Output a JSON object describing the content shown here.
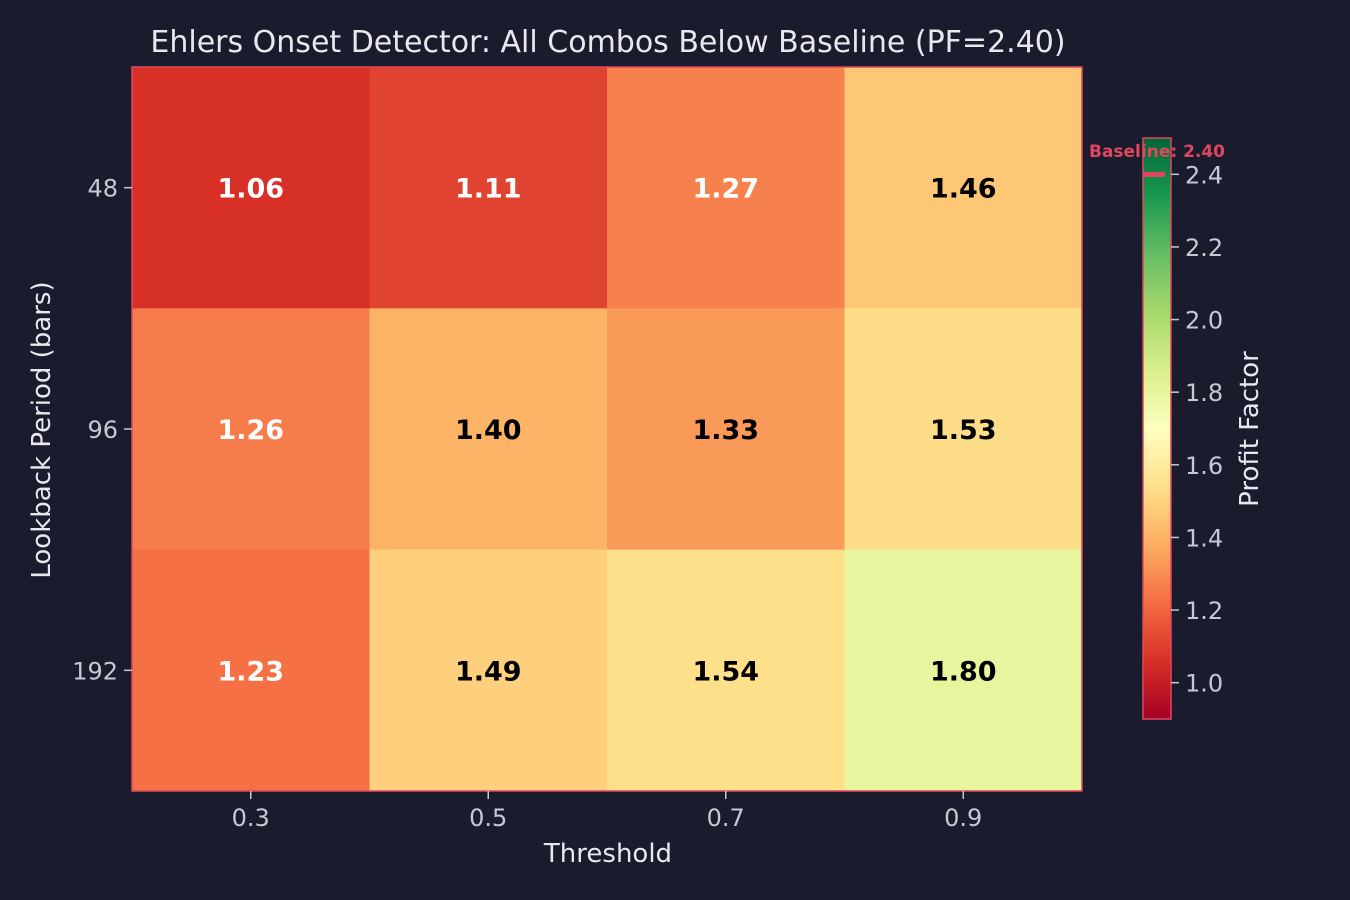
{
  "chart_data": {
    "type": "heatmap",
    "title": "Ehlers Onset Detector: All Combos Below Baseline (PF=2.40)",
    "xlabel": "Threshold",
    "ylabel": "Lookback Period (bars)",
    "x_categories": [
      "0.3",
      "0.5",
      "0.7",
      "0.9"
    ],
    "y_categories": [
      "48",
      "96",
      "192"
    ],
    "values": [
      [
        1.06,
        1.11,
        1.27,
        1.46
      ],
      [
        1.26,
        1.4,
        1.33,
        1.53
      ],
      [
        1.23,
        1.49,
        1.54,
        1.8
      ]
    ],
    "value_labels": [
      [
        "1.06",
        "1.11",
        "1.27",
        "1.46"
      ],
      [
        "1.26",
        "1.40",
        "1.33",
        "1.53"
      ],
      [
        "1.23",
        "1.49",
        "1.54",
        "1.80"
      ]
    ],
    "colorbar": {
      "label": "Profit Factor",
      "range": [
        0.9,
        2.5
      ],
      "ticks": [
        "1.0",
        "1.2",
        "1.4",
        "1.6",
        "1.8",
        "2.0",
        "2.2",
        "2.4"
      ],
      "colormap": "RdYlGn",
      "baseline_value": 2.4,
      "baseline_label": "Baseline: 2.40"
    }
  },
  "colors": {
    "background": "#1b1b2e",
    "border": "#e0475e",
    "baseline": "#e0475e",
    "text": "#e8e8ee",
    "tick_text": "#c8c8d2"
  }
}
